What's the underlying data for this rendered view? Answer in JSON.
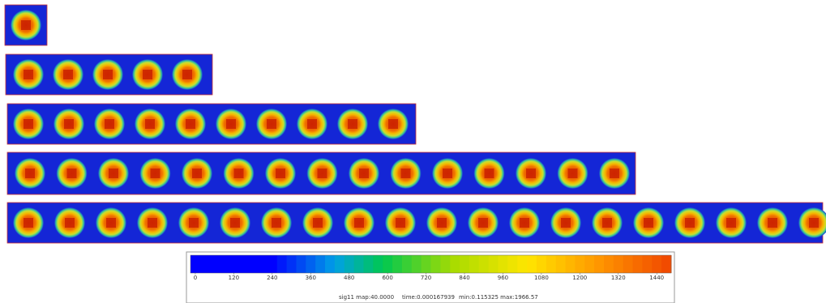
{
  "colorbar": {
    "lim": [
      -15,
      1485
    ],
    "ticks": [
      0,
      120,
      240,
      360,
      480,
      600,
      720,
      840,
      960,
      1080,
      1200,
      1320,
      1440
    ]
  },
  "caption": {
    "field": "sig11 map:40.0000",
    "time": "time:0.000167939",
    "range": "min:0.115325 max:1966.57"
  }
}
